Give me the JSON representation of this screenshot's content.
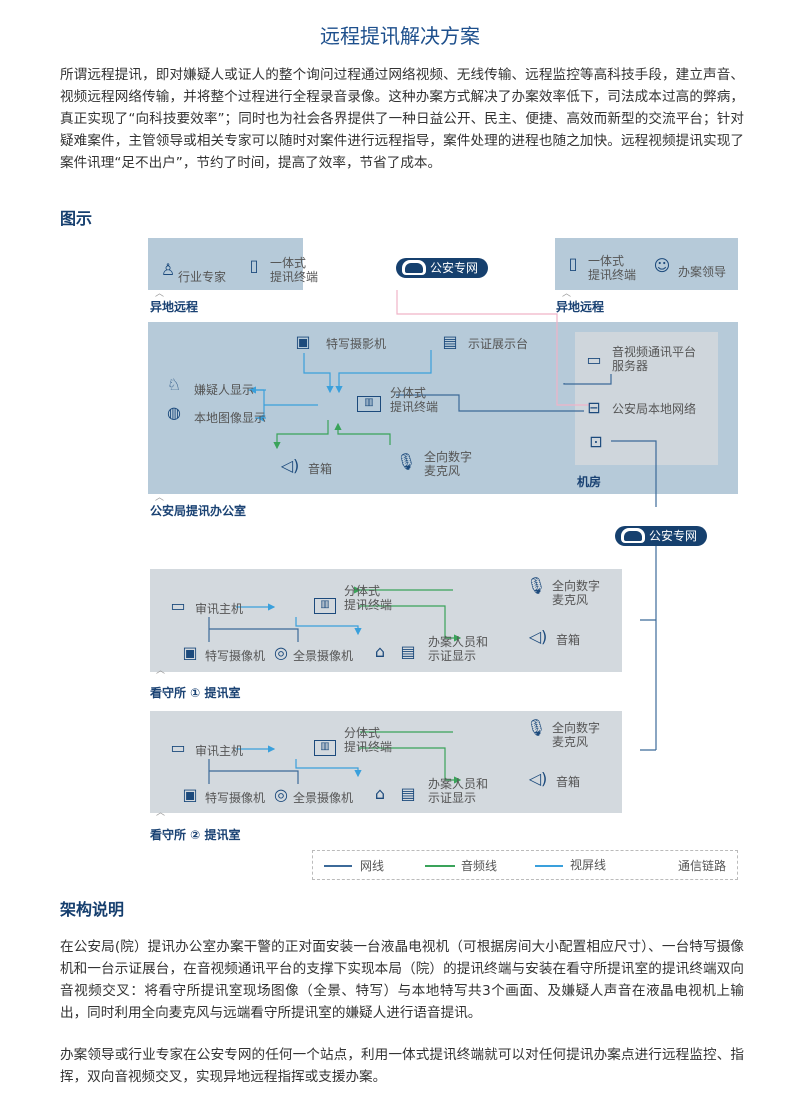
{
  "title": "远程提讯解决方案",
  "intro": "所谓远程提讯，即对嫌疑人或证人的整个询问过程通过网络视频、无线传输、远程监控等高科技手段，建立声音、视频远程网络传输，并将整个过程进行全程录音录像。这种办案方式解决了办案效率低下，司法成本过高的弊病，真正实现了“向科技要效率”；同时也为社会各界提供了一种日益公开、民主、便捷、高效而新型的交流平台；针对疑难案件，主管领导或相关专家可以随时对案件进行远程指导，案件处理的进程也随之加快。远程视频提讯实现了案件讯理“足不出户”，节约了时间，提高了效率，节省了成本。",
  "diagram_heading": "图示",
  "diagram": {
    "remote_left": {
      "expert": "行业专家",
      "terminal": [
        "一体式",
        "提讯终端"
      ],
      "label": "异地远程"
    },
    "remote_right": {
      "terminal": [
        "一体式",
        "提讯终端"
      ],
      "leader": "办案领导",
      "label": "异地远程"
    },
    "cloud_top": "公安专网",
    "cloud_mid": "公安专网",
    "office": {
      "label": "公安局提讯办公室",
      "closeup_camera": "特写摄影机",
      "evidence_table": "示证展示台",
      "suspect_display": "嫌疑人显示",
      "local_display": "本地图像显示",
      "terminal": [
        "分体式",
        "提讯终端"
      ],
      "speaker": "音箱",
      "mic": [
        "全向数字",
        "麦克风"
      ]
    },
    "machine_room": {
      "label": "机房",
      "server": [
        "音视频通讯平台",
        "服务器"
      ],
      "network": "公安局本地网络"
    },
    "rooms": [
      {
        "label": "看守所 ① 提讯室",
        "host": "审讯主机",
        "terminal": [
          "分体式",
          "提讯终端"
        ],
        "mic": [
          "全向数字",
          "麦克风"
        ],
        "speaker": "音箱",
        "closeup": "特写摄像机",
        "panorama": "全景摄像机",
        "display": [
          "办案人员和",
          "示证显示"
        ]
      },
      {
        "label": "看守所 ② 提讯室",
        "host": "审讯主机",
        "terminal": [
          "分体式",
          "提讯终端"
        ],
        "mic": [
          "全向数字",
          "麦克风"
        ],
        "speaker": "音箱",
        "closeup": "特写摄像机",
        "panorama": "全景摄像机",
        "display": [
          "办案人员和",
          "示证显示"
        ]
      }
    ],
    "legend": {
      "items": [
        {
          "label": "网线",
          "color": "#3c6a99"
        },
        {
          "label": "音频线",
          "color": "#3aa35a"
        },
        {
          "label": "视屏线",
          "color": "#3aa0dc"
        }
      ],
      "title": "通信链路"
    }
  },
  "arch_heading": "架构说明",
  "arch_p1": "在公安局(院）提讯办公室办案干警的正对面安装一台液晶电视机（可根据房间大小配置相应尺寸）、一台特写摄像机和一台示证展台，在音视频通讯平台的支撑下实现本局（院）的提讯终端与安装在看守所提讯室的提讯终端双向音视频交叉：将看守所提讯室现场图像（全景、特写）与本地特写共3个画面、及嫌疑人声音在液晶电视机上输出，同时利用全向麦克风与远端看守所提讯室的嫌疑人进行语音提讯。",
  "arch_p2": "办案领导或行业专家在公安专网的任何一个站点，利用一体式提讯终端就可以对任何提讯办案点进行远程监控、指挥，双向音视频交叉，实现异地远程指挥或支援办案。"
}
